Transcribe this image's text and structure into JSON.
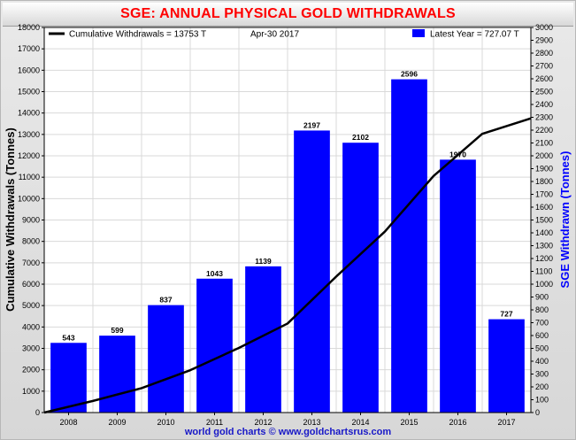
{
  "title": "SGE: ANNUAL PHYSICAL GOLD WITHDRAWALS",
  "credit": "world gold charts © www.goldchartsrus.com",
  "legend": {
    "cumulative": "Cumulative Withdrawals = 13753 T",
    "date": "Apr-30  2017",
    "latest": "Latest Year = 727.07 T"
  },
  "colors": {
    "bar": "#0000ff",
    "line": "#000000",
    "title": "#ff0000",
    "right_axis": "#0000ff",
    "plot_bg": "#ffffff",
    "grid": "#d9d9d9"
  },
  "chart_data": {
    "type": "bar",
    "categories": [
      "2008",
      "2009",
      "2010",
      "2011",
      "2012",
      "2013",
      "2014",
      "2015",
      "2016",
      "2017"
    ],
    "series": [
      {
        "name": "SGE Withdrawn (Tonnes)",
        "type": "bar",
        "axis": "right",
        "values": [
          543,
          599,
          837,
          1043,
          1139,
          2197,
          2102,
          2596,
          1970,
          727
        ],
        "data_labels": [
          "543",
          "599",
          "837",
          "1043",
          "1139",
          "2197",
          "2102",
          "2596",
          "1970",
          "727"
        ]
      },
      {
        "name": "Cumulative Withdrawals",
        "type": "line",
        "axis": "left",
        "x": [
          2007.5,
          2008.5,
          2009.5,
          2010.5,
          2011.5,
          2012.5,
          2013.5,
          2014.5,
          2015.5,
          2016.5,
          2017.5
        ],
        "values": [
          0,
          543,
          1142,
          1979,
          3022,
          4161,
          6358,
          8460,
          11056,
          13026,
          13753
        ]
      }
    ],
    "y_left": {
      "label": "Cumulative Withdrawals (Tonnes)",
      "min": 0,
      "max": 18000,
      "step": 1000,
      "ticks": [
        "0",
        "1000",
        "2000",
        "3000",
        "4000",
        "5000",
        "6000",
        "7000",
        "8000",
        "9000",
        "10000",
        "11000",
        "12000",
        "13000",
        "14000",
        "15000",
        "16000",
        "17000",
        "18000"
      ]
    },
    "y_right": {
      "label": "SGE Withdrawn (Tonnes)",
      "min": 0,
      "max": 3000,
      "step": 100,
      "ticks": [
        "0",
        "100",
        "200",
        "300",
        "400",
        "500",
        "600",
        "700",
        "800",
        "900",
        "1000",
        "1100",
        "1200",
        "1300",
        "1400",
        "1500",
        "1600",
        "1700",
        "1800",
        "1900",
        "2000",
        "2100",
        "2200",
        "2300",
        "2400",
        "2500",
        "2600",
        "2700",
        "2800",
        "2900",
        "3000"
      ]
    },
    "grid": true,
    "legend_position": "top"
  }
}
